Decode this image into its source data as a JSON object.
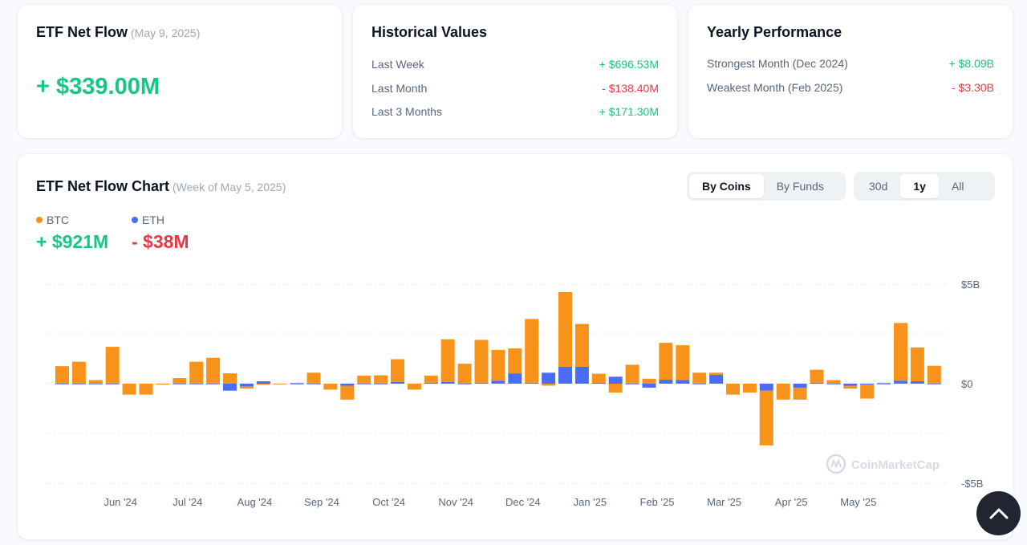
{
  "net_flow": {
    "title": "ETF Net Flow",
    "date": "(May 9, 2025)",
    "value": "+ $339.00M"
  },
  "historical": {
    "title": "Historical Values",
    "rows": [
      {
        "label": "Last Week",
        "value": "+ $696.53M"
      },
      {
        "label": "Last Month",
        "value": "- $138.40M"
      },
      {
        "label": "Last 3 Months",
        "value": "+ $171.30M"
      }
    ]
  },
  "yearly": {
    "title": "Yearly Performance",
    "rows": [
      {
        "label": "Strongest Month",
        "period": "(Dec 2024)",
        "value": "+ $8.09B"
      },
      {
        "label": "Weakest Month",
        "period": "(Feb 2025)",
        "value": "- $3.30B"
      }
    ]
  },
  "chart_card": {
    "title": "ETF Net Flow Chart",
    "subtitle": "(Week of May 5, 2025)",
    "view_tabs": [
      "By Coins",
      "By Funds"
    ],
    "view_selected": "By Coins",
    "range_tabs": [
      "30d",
      "1y",
      "All"
    ],
    "range_selected": "1y",
    "legend": [
      {
        "name": "BTC",
        "value": "+ $921M"
      },
      {
        "name": "ETH",
        "value": "- $38M"
      }
    ],
    "watermark": "CoinMarketCap"
  },
  "colors": {
    "btc": "#f7931a",
    "eth": "#4a6cf7",
    "positive": "#16c784",
    "negative": "#ea3943"
  },
  "chart_data": {
    "type": "bar",
    "stacked": true,
    "y_ticks": [
      "$5B",
      "$0",
      "-$5B"
    ],
    "ylim": [
      -5,
      5
    ],
    "y_unit": "$B",
    "x_tick_labels": [
      "Jun '24",
      "Jul '24",
      "Aug '24",
      "Sep '24",
      "Oct '24",
      "Nov '24",
      "Dec '24",
      "Jan '25",
      "Feb '25",
      "Mar '25",
      "Apr '25",
      "May '25"
    ],
    "x_tick_week_index": [
      3,
      7,
      11,
      15,
      19,
      23,
      27,
      31,
      35,
      39,
      43,
      47
    ],
    "series": [
      {
        "name": "BTC",
        "values": [
          0.88,
          1.1,
          0.18,
          1.85,
          -0.55,
          -0.55,
          -0.05,
          0.28,
          1.1,
          1.3,
          0.52,
          -0.1,
          -0.05,
          0.0,
          0.05,
          0.55,
          -0.3,
          -0.7,
          0.4,
          0.42,
          1.15,
          -0.3,
          0.35,
          2.15,
          1.0,
          2.15,
          1.55,
          1.25,
          3.2,
          -0.1,
          3.75,
          2.15,
          0.45,
          -0.45,
          0.95,
          0.25,
          1.85,
          1.75,
          0.55,
          0.1,
          -0.55,
          -0.45,
          -2.75,
          -0.8,
          -0.6,
          0.65,
          0.18,
          -0.15,
          -0.7,
          0.05,
          2.9,
          1.7,
          0.9
        ]
      },
      {
        "name": "ETH",
        "values": [
          0.0,
          0.0,
          0.0,
          0.0,
          0.0,
          0.0,
          0.0,
          0.0,
          0.0,
          0.0,
          -0.35,
          -0.15,
          0.12,
          0.0,
          0.0,
          0.0,
          0.0,
          -0.1,
          0.0,
          0.0,
          0.08,
          0.0,
          0.05,
          0.08,
          0.0,
          0.05,
          0.15,
          0.52,
          0.05,
          0.55,
          0.85,
          0.85,
          0.05,
          0.35,
          0.0,
          -0.2,
          0.2,
          0.18,
          0.0,
          0.45,
          0.0,
          0.0,
          -0.35,
          0.0,
          -0.2,
          0.05,
          0.0,
          -0.1,
          -0.05,
          0.0,
          0.15,
          0.12,
          0.0
        ]
      }
    ]
  }
}
